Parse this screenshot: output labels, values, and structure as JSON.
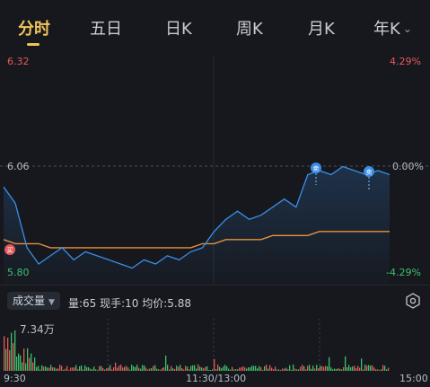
{
  "tabs": [
    {
      "label": "分时",
      "active": true
    },
    {
      "label": "五日",
      "active": false
    },
    {
      "label": "日K",
      "active": false
    },
    {
      "label": "周K",
      "active": false
    },
    {
      "label": "月K",
      "active": false
    },
    {
      "label": "年K",
      "active": false
    }
  ],
  "price_axis": {
    "high": "6.32",
    "mid": "6.06",
    "low": "5.80",
    "pct_high": "4.29%",
    "pct_mid": "0.00%",
    "pct_low": "-4.29%"
  },
  "markers": {
    "buy_glyph": "买",
    "sell_glyph": "卖"
  },
  "volume": {
    "selector_label": "成交量",
    "info": "量:65  现手:10  均价:5.88",
    "max_label": "7.34万"
  },
  "time_axis": {
    "start": "9:30",
    "mid": "11:30/13:00",
    "end": "15:00"
  },
  "colors": {
    "accent": "#f0c35a",
    "price_line": "#3b8de8",
    "avg_line": "#e8913a",
    "up": "#e35a5a",
    "down": "#3fbf6a"
  },
  "chart_data": {
    "type": "line",
    "ylim": [
      5.8,
      6.32
    ],
    "reference_price": 6.06,
    "series": [
      {
        "values": [
          6.01,
          5.97,
          5.86,
          5.82,
          5.84,
          5.86,
          5.83,
          5.85,
          5.84,
          5.83,
          5.82,
          5.81,
          5.83,
          5.82,
          5.84,
          5.83,
          5.85,
          5.86,
          5.9,
          5.93,
          5.95,
          5.93,
          5.94,
          5.96,
          5.98,
          5.96,
          6.04,
          6.05,
          6.04,
          6.06,
          6.05,
          6.04,
          6.05,
          6.04
        ]
      },
      {
        "values": [
          5.88,
          5.87,
          5.87,
          5.87,
          5.86,
          5.86,
          5.86,
          5.86,
          5.86,
          5.86,
          5.86,
          5.86,
          5.86,
          5.86,
          5.86,
          5.86,
          5.86,
          5.87,
          5.87,
          5.88,
          5.88,
          5.88,
          5.88,
          5.89,
          5.89,
          5.89,
          5.89,
          5.9,
          5.9,
          5.9,
          5.9,
          5.9,
          5.9,
          5.9
        ]
      }
    ]
  }
}
